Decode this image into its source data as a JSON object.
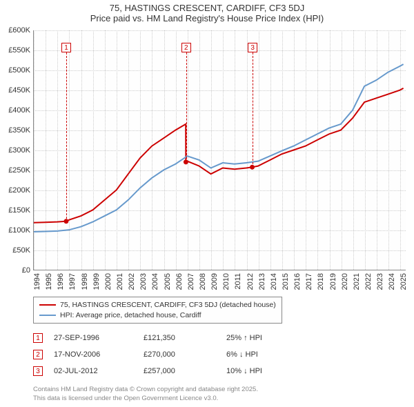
{
  "title": {
    "line1": "75, HASTINGS CRESCENT, CARDIFF, CF3 5DJ",
    "line2": "Price paid vs. HM Land Registry's House Price Index (HPI)"
  },
  "chart": {
    "type": "line",
    "background_color": "#fefefe",
    "grid_color": "#cccccc",
    "axis_color": "#888888",
    "text_color": "#333333",
    "font_family": "Arial",
    "title_fontsize": 13,
    "tick_fontsize": 11,
    "legend_fontsize": 10.5,
    "xlim": [
      1994,
      2025.5
    ],
    "ylim": [
      0,
      600000
    ],
    "ytick_step": 50000,
    "yticks": [
      "£0",
      "£50K",
      "£100K",
      "£150K",
      "£200K",
      "£250K",
      "£300K",
      "£350K",
      "£400K",
      "£450K",
      "£500K",
      "£550K",
      "£600K"
    ],
    "xticks": [
      1994,
      1995,
      1996,
      1997,
      1998,
      1999,
      2000,
      2001,
      2002,
      2003,
      2004,
      2005,
      2006,
      2007,
      2008,
      2009,
      2010,
      2011,
      2012,
      2013,
      2014,
      2015,
      2016,
      2017,
      2018,
      2019,
      2020,
      2021,
      2022,
      2023,
      2024,
      2025
    ],
    "series": [
      {
        "name": "price_paid",
        "label": "75, HASTINGS CRESCENT, CARDIFF, CF3 5DJ (detached house)",
        "color": "#cc0000",
        "line_width": 2,
        "x": [
          1994,
          1995,
          1996,
          1996.74,
          1997,
          1998,
          1999,
          2000,
          2001,
          2002,
          2003,
          2004,
          2005,
          2006,
          2006.87,
          2006.88,
          2007,
          2008,
          2009,
          2010,
          2011,
          2012,
          2012.5,
          2013,
          2014,
          2015,
          2016,
          2017,
          2018,
          2019,
          2020,
          2021,
          2022,
          2023,
          2024,
          2025,
          2025.3
        ],
        "y": [
          118000,
          119000,
          120000,
          121350,
          125000,
          135000,
          150000,
          175000,
          200000,
          240000,
          280000,
          310000,
          330000,
          350000,
          365000,
          270000,
          272000,
          260000,
          240000,
          255000,
          252000,
          255000,
          257000,
          260000,
          275000,
          290000,
          300000,
          310000,
          325000,
          340000,
          350000,
          380000,
          420000,
          430000,
          440000,
          450000,
          455000
        ]
      },
      {
        "name": "hpi",
        "label": "HPI: Average price, detached house, Cardiff",
        "color": "#6699cc",
        "line_width": 2,
        "x": [
          1994,
          1995,
          1996,
          1997,
          1998,
          1999,
          2000,
          2001,
          2002,
          2003,
          2004,
          2005,
          2006,
          2007,
          2008,
          2009,
          2010,
          2011,
          2012,
          2013,
          2014,
          2015,
          2016,
          2017,
          2018,
          2019,
          2020,
          2021,
          2022,
          2023,
          2024,
          2025,
          2025.3
        ],
        "y": [
          95000,
          96000,
          97000,
          100000,
          108000,
          120000,
          135000,
          150000,
          175000,
          205000,
          230000,
          250000,
          265000,
          285000,
          275000,
          255000,
          268000,
          265000,
          268000,
          272000,
          285000,
          298000,
          310000,
          325000,
          340000,
          355000,
          365000,
          400000,
          460000,
          475000,
          495000,
          510000,
          515000
        ]
      }
    ],
    "markers": [
      {
        "n": "1",
        "x": 1996.74,
        "y_label_top": 18,
        "line_from_y": 121350
      },
      {
        "n": "2",
        "x": 2006.88,
        "y_label_top": 18,
        "line_from_y": 270000
      },
      {
        "n": "3",
        "x": 2012.5,
        "y_label_top": 18,
        "line_from_y": 257000
      }
    ]
  },
  "legend": {
    "items": [
      {
        "color": "#cc0000",
        "label": "75, HASTINGS CRESCENT, CARDIFF, CF3 5DJ (detached house)"
      },
      {
        "color": "#6699cc",
        "label": "HPI: Average price, detached house, Cardiff"
      }
    ]
  },
  "sales": [
    {
      "n": "1",
      "date": "27-SEP-1996",
      "price": "£121,350",
      "diff": "25% ↑ HPI"
    },
    {
      "n": "2",
      "date": "17-NOV-2006",
      "price": "£270,000",
      "diff": "6% ↓ HPI"
    },
    {
      "n": "3",
      "date": "02-JUL-2012",
      "price": "£257,000",
      "diff": "10% ↓ HPI"
    }
  ],
  "attribution": {
    "line1": "Contains HM Land Registry data © Crown copyright and database right 2025.",
    "line2": "This data is licensed under the Open Government Licence v3.0."
  },
  "colors": {
    "marker_border": "#cc0000",
    "attribution_text": "#888888"
  }
}
